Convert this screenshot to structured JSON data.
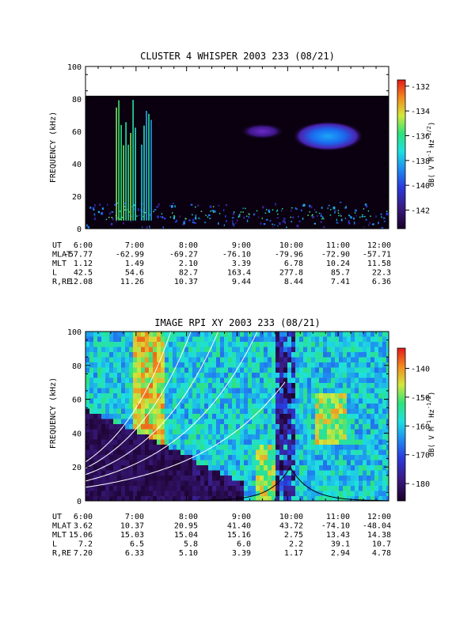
{
  "chart_data": [
    {
      "type": "heatmap",
      "title": "CLUSTER 4 WHISPER 2003 233 (08/21)",
      "ylabel": "FREQUENCY (kHz)",
      "colorbar_label": "dB( V M",
      "colorbar_label_sup1": "-1",
      "colorbar_label_hz": "Hz",
      "colorbar_label_sup2": "-1/2",
      "colorbar_label_close": ")",
      "ylim": [
        0,
        100
      ],
      "yticks": [
        "0",
        "20",
        "40",
        "60",
        "80",
        "100"
      ],
      "xticks": [
        "6:00",
        "7:00",
        "8:00",
        "9:00",
        "10:00",
        "11:00",
        "12:00"
      ],
      "colorbar_range": [
        -143.5,
        -131.5
      ],
      "colorbar_ticks": [
        "-132",
        "-134",
        "-136",
        "-138",
        "-140",
        "-142"
      ],
      "data_ceiling_khz": 80,
      "features": [
        {
          "name": "bursts",
          "x_hours": [
            6.6,
            7.0
          ],
          "y_khz": [
            5,
            80
          ],
          "level_db": -135
        },
        {
          "name": "bursts",
          "x_hours": [
            7.1,
            7.3
          ],
          "y_khz": [
            5,
            80
          ],
          "level_db": -136
        },
        {
          "name": "emission",
          "x_center": 10.8,
          "y_center": 57,
          "level_db": -135
        },
        {
          "name": "emission",
          "x_center": 9.5,
          "y_center": 60,
          "level_db": -140
        }
      ],
      "ephemeris": {
        "labels": [
          "UT",
          "MLAT",
          "MLT",
          "L",
          "R,RE"
        ],
        "rows": [
          [
            "6:00",
            "7:00",
            "8:00",
            "9:00",
            "10:00",
            "11:00",
            "12:00"
          ],
          [
            "-57.77",
            "-62.99",
            "-69.27",
            "-76.10",
            "-79.96",
            "-72.90",
            "-57.71"
          ],
          [
            "1.12",
            "1.49",
            "2.10",
            "3.39",
            "6.78",
            "10.24",
            "11.58"
          ],
          [
            "42.5",
            "54.6",
            "82.7",
            "163.4",
            "277.8",
            "85.7",
            "22.3"
          ],
          [
            "12.08",
            "11.26",
            "10.37",
            "9.44",
            "8.44",
            "7.41",
            "6.36"
          ]
        ]
      }
    },
    {
      "type": "heatmap",
      "title": "IMAGE RPI XY 2003 233 (08/21)",
      "ylabel": "FREQUENCY (kHz)",
      "colorbar_label": "dB( V M",
      "colorbar_label_sup1": "-1",
      "colorbar_label_hz": "Hz",
      "colorbar_label_sup2": "-1/2",
      "colorbar_label_close": ")",
      "ylim": [
        0,
        100
      ],
      "yticks": [
        "0",
        "20",
        "40",
        "60",
        "80",
        "100"
      ],
      "xticks": [
        "6:00",
        "7:00",
        "8:00",
        "9:00",
        "10:00",
        "11:00",
        "12:00"
      ],
      "colorbar_range": [
        -186,
        -133
      ],
      "colorbar_ticks": [
        "-140",
        "-150",
        "-160",
        "-170",
        "-180"
      ],
      "ephemeris": {
        "labels": [
          "UT",
          "MLAT",
          "MLT",
          "L",
          "R,RE"
        ],
        "rows": [
          [
            "6:00",
            "7:00",
            "8:00",
            "9:00",
            "10:00",
            "11:00",
            "12:00"
          ],
          [
            "3.62",
            "10.37",
            "20.95",
            "41.40",
            "43.72",
            "-74.10",
            "-48.04"
          ],
          [
            "15.06",
            "15.03",
            "15.04",
            "15.16",
            "2.75",
            "13.43",
            "14.38"
          ],
          [
            "7.2",
            "6.5",
            "5.8",
            "6.0",
            "2.2",
            "39.1",
            "10.7"
          ],
          [
            "7.20",
            "6.33",
            "5.10",
            "3.39",
            "1.17",
            "2.94",
            "4.78"
          ]
        ]
      }
    }
  ]
}
